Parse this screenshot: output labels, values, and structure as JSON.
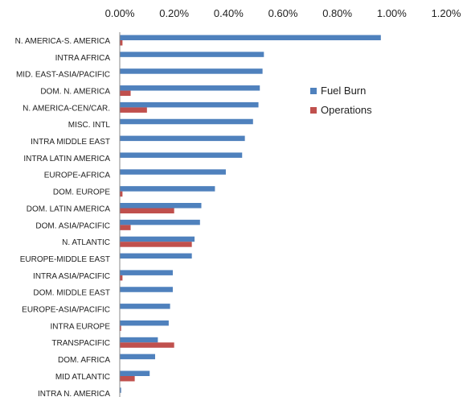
{
  "chart_data": {
    "type": "bar",
    "orientation": "horizontal",
    "title": "",
    "xlabel": "",
    "ylabel": "",
    "xlim": [
      0,
      1.2
    ],
    "x_ticks": [
      "0.00%",
      "0.20%",
      "0.40%",
      "0.60%",
      "0.80%",
      "1.00%",
      "1.20%"
    ],
    "x_axis_position": "top",
    "grid": false,
    "legend_position": "right",
    "categories": [
      "N. AMERICA-S. AMERICA",
      "INTRA AFRICA",
      "MID. EAST-ASIA/PACIFIC",
      "DOM. N. AMERICA",
      "N. AMERICA-CEN/CAR.",
      "MISC. INTL",
      "INTRA MIDDLE EAST",
      "INTRA LATIN AMERICA",
      "EUROPE-AFRICA",
      "DOM. EUROPE",
      "DOM. LATIN AMERICA",
      "DOM. ASIA/PACIFIC",
      "N. ATLANTIC",
      "EUROPE-MIDDLE EAST",
      "INTRA ASIA/PACIFIC",
      "DOM. MIDDLE EAST",
      "EUROPE-ASIA/PACIFIC",
      "INTRA EUROPE",
      "TRANSPACIFIC",
      "DOM. AFRICA",
      "MID ATLANTIC",
      "INTRA N. AMERICA"
    ],
    "series": [
      {
        "name": "Fuel Burn",
        "color": "#4f81bd",
        "values": [
          0.96,
          0.53,
          0.525,
          0.515,
          0.51,
          0.49,
          0.46,
          0.45,
          0.39,
          0.35,
          0.3,
          0.295,
          0.275,
          0.265,
          0.195,
          0.195,
          0.185,
          0.18,
          0.14,
          0.13,
          0.11,
          0.005
        ]
      },
      {
        "name": "Operations",
        "color": "#c0504d",
        "values": [
          0.01,
          0.0,
          0.0,
          0.04,
          0.1,
          0.0,
          0.0,
          0.0,
          0.0,
          0.01,
          0.2,
          0.04,
          0.265,
          0.0,
          0.01,
          0.0,
          0.0,
          0.005,
          0.2,
          0.0,
          0.055,
          0.0
        ]
      }
    ]
  }
}
